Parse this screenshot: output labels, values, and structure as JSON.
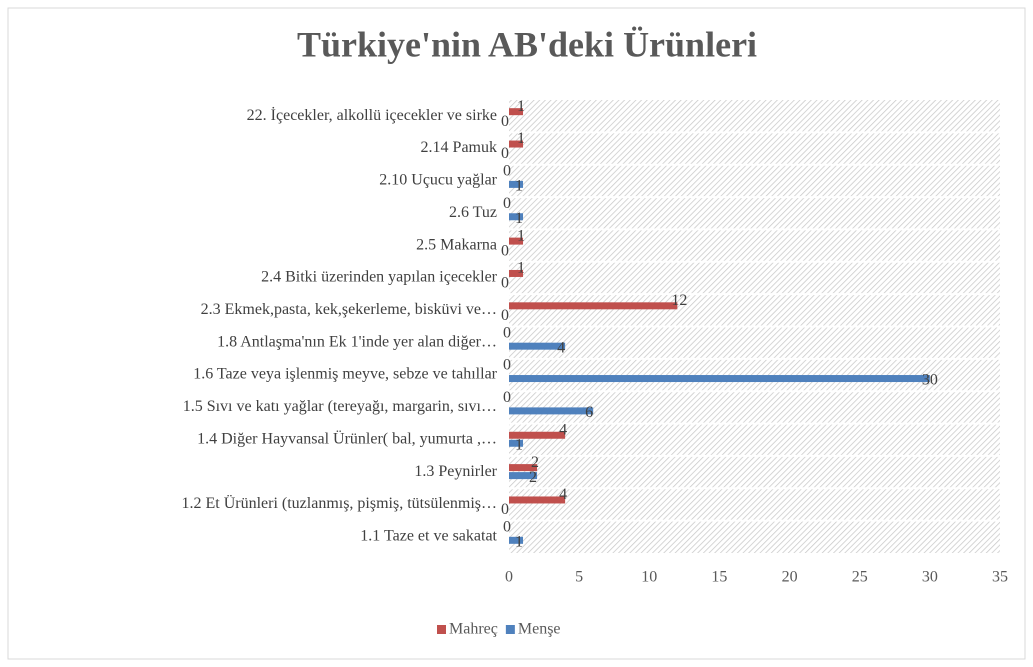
{
  "chart_data": {
    "type": "bar",
    "orientation": "horizontal",
    "title": "Türkiye'nin AB'deki Ürünleri",
    "categories": [
      "22. İçecekler, alkollü içecekler ve sirke",
      "2.14 Pamuk",
      "2.10 Uçucu yağlar",
      "2.6 Tuz",
      "2.5 Makarna",
      "2.4 Bitki üzerinden yapılan içecekler",
      "2.3 Ekmek,pasta, kek,şekerleme, bisküvi ve…",
      "1.8 Antlaşma'nın Ek 1'inde yer alan diğer…",
      "1.6 Taze veya işlenmiş meyve, sebze ve tahıllar",
      "1.5 Sıvı ve katı yağlar (tereyağı, margarin, sıvı…",
      "1.4 Diğer Hayvansal Ürünler( bal, yumurta ,…",
      "1.3 Peynirler",
      "1.2 Et Ürünleri (tuzlanmış, pişmiş, tütsülenmiş…",
      "1.1 Taze et ve sakatat"
    ],
    "series": [
      {
        "name": "Mahreç",
        "color": "#c0504d",
        "values": [
          1,
          1,
          0,
          0,
          1,
          1,
          12,
          0,
          0,
          0,
          4,
          2,
          4,
          0
        ]
      },
      {
        "name": "Menşe",
        "color": "#4f81bd",
        "values": [
          0,
          0,
          1,
          1,
          0,
          0,
          0,
          4,
          30,
          6,
          1,
          2,
          0,
          1
        ]
      }
    ],
    "xlim": [
      0,
      35
    ],
    "xticks": [
      0,
      5,
      10,
      15,
      20,
      25,
      30,
      35
    ],
    "legend": "bottom"
  }
}
